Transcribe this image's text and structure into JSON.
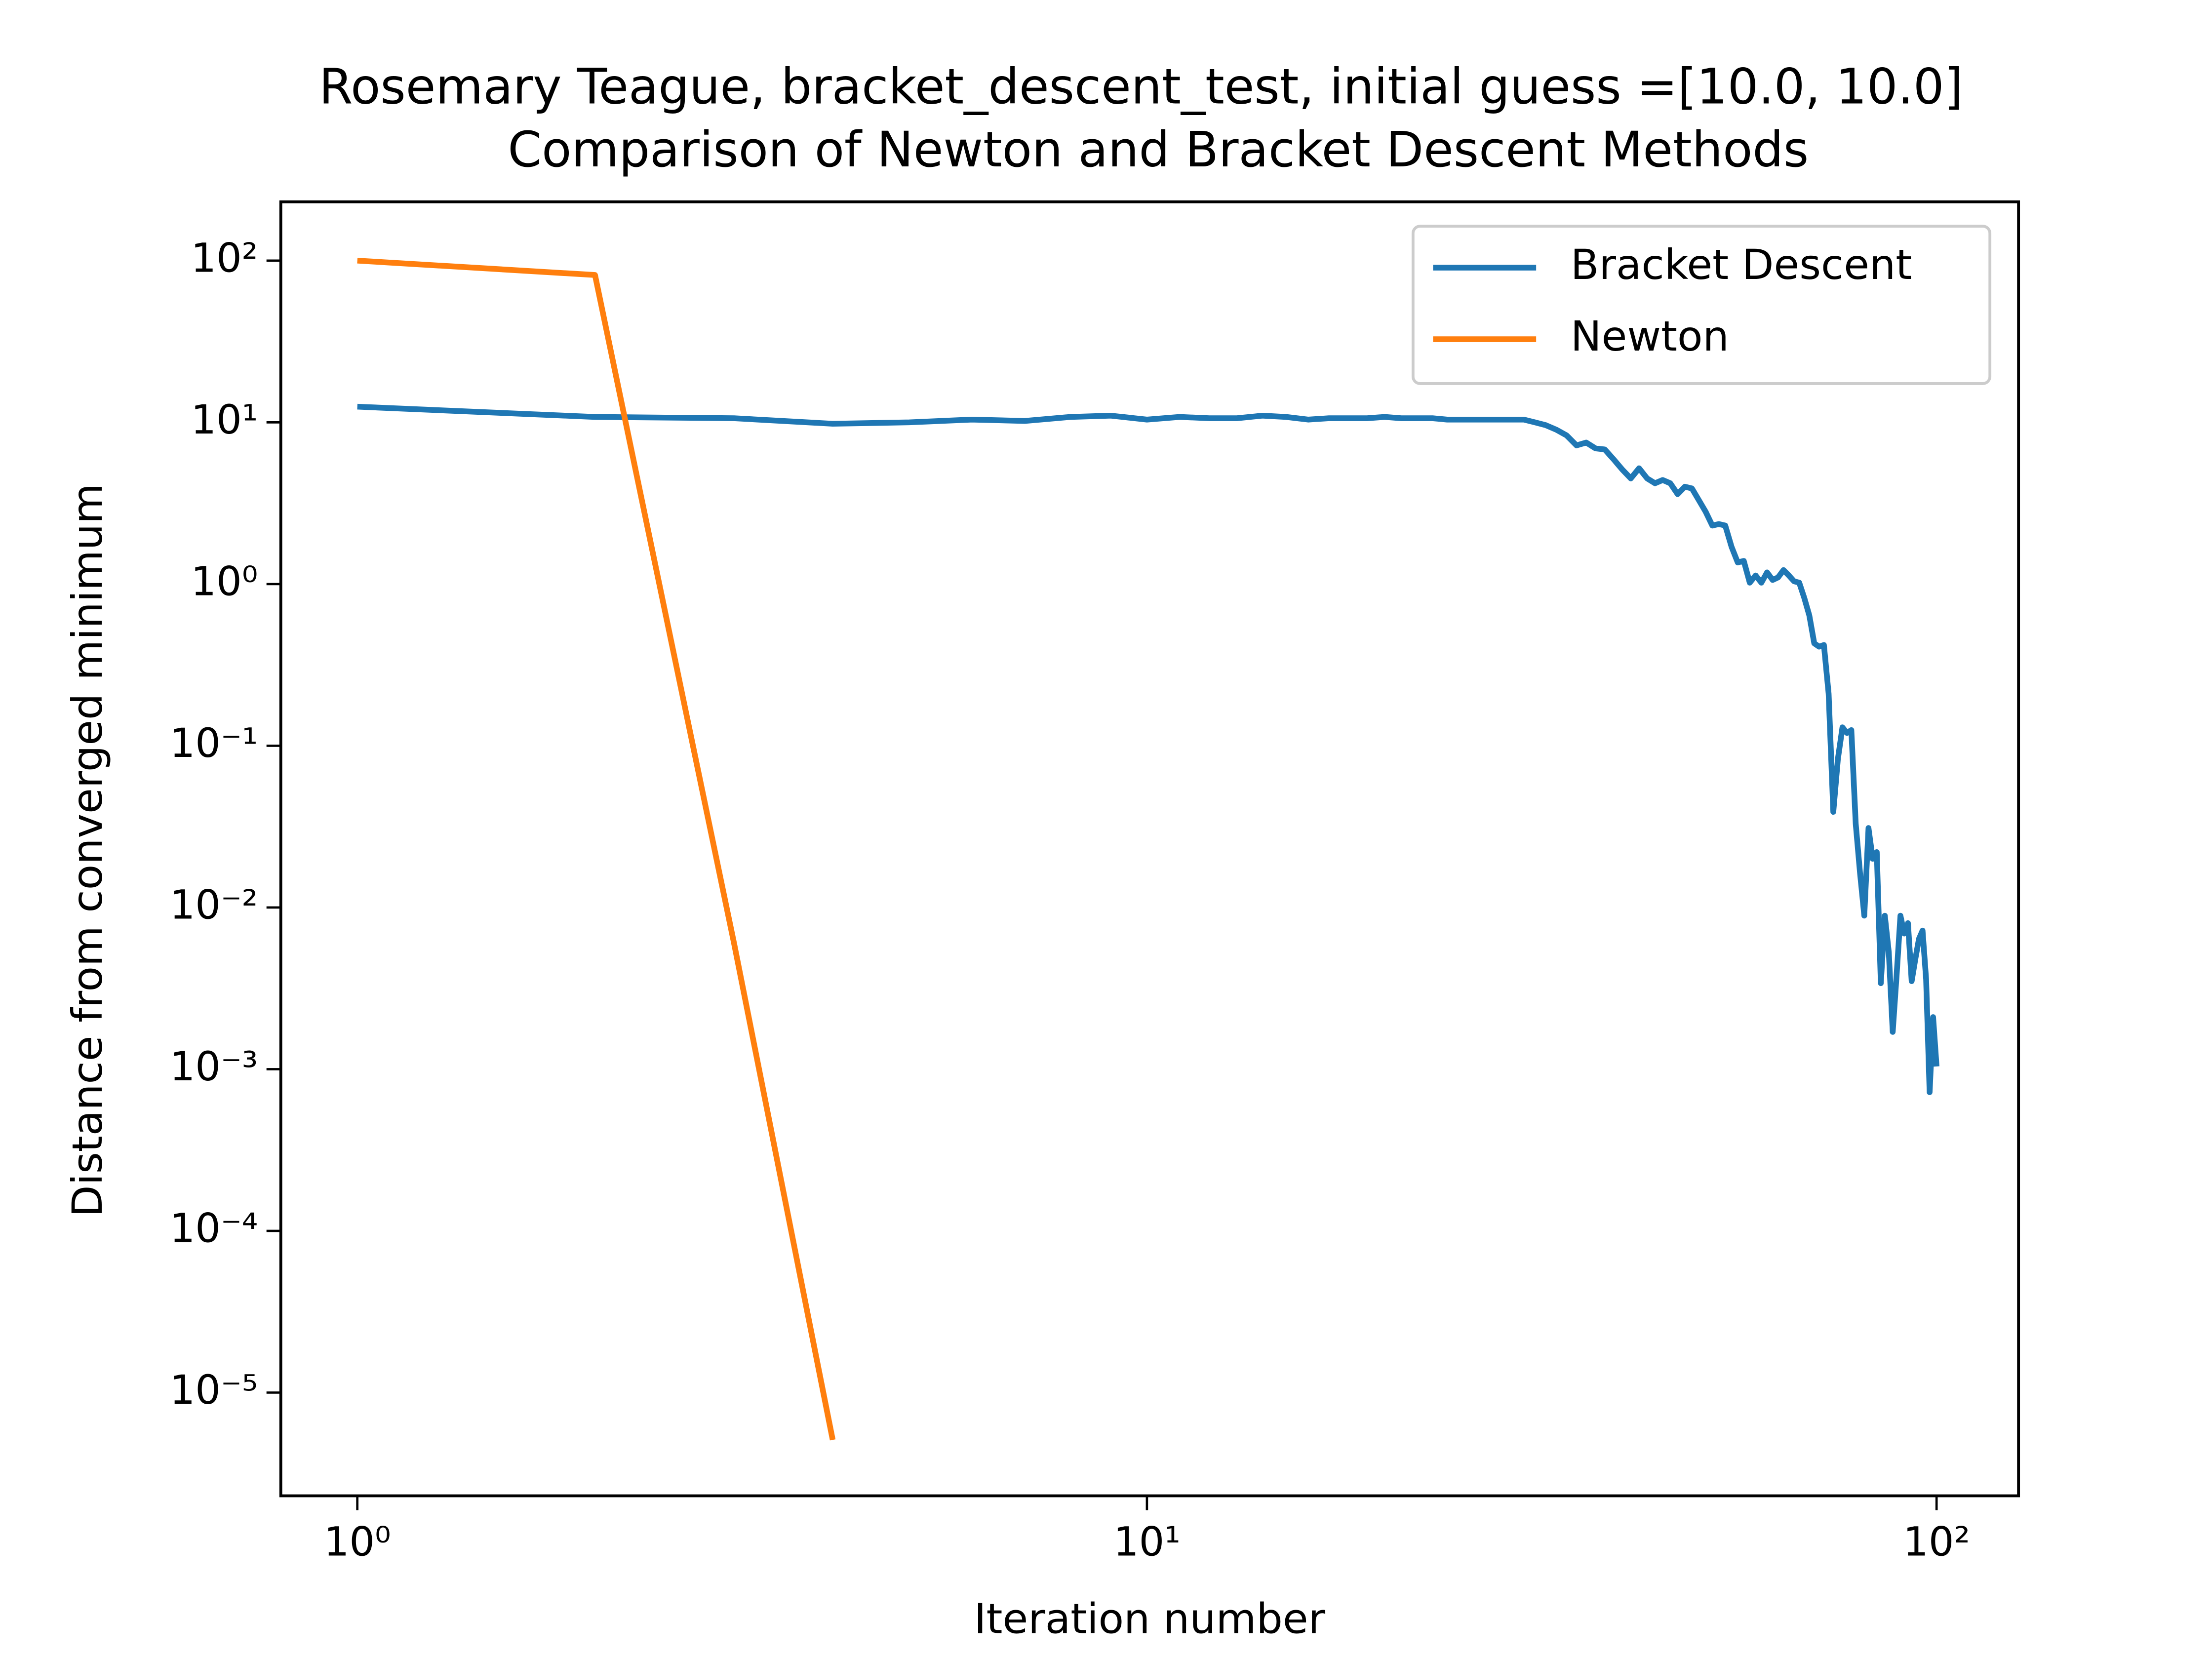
{
  "chart_data": {
    "type": "line",
    "title": "Rosemary Teague, bracket_descent_test, initial guess =[10.0, 10.0]",
    "subtitle": "Comparison of Newton and Bracket Descent Methods",
    "x_label": "Iteration number",
    "y_label": "Distance from converged minimum",
    "xscale": "log",
    "yscale": "log",
    "xlim": [
      0.8,
      127
    ],
    "ylim": [
      2.3e-06,
      231
    ],
    "xticks": [
      {
        "value": 1,
        "label": "10⁰"
      },
      {
        "value": 10,
        "label": "10¹"
      },
      {
        "value": 100,
        "label": "10²"
      }
    ],
    "yticks": [
      {
        "value": 1e-05,
        "label": "10⁻⁵"
      },
      {
        "value": 0.0001,
        "label": "10⁻⁴"
      },
      {
        "value": 0.001,
        "label": "10⁻³"
      },
      {
        "value": 0.01,
        "label": "10⁻²"
      },
      {
        "value": 0.1,
        "label": "10⁻¹"
      },
      {
        "value": 1,
        "label": "10⁰"
      },
      {
        "value": 10,
        "label": "10¹"
      },
      {
        "value": 100,
        "label": "10²"
      }
    ],
    "legend": "upper right",
    "series": [
      {
        "name": "Bracket Descent",
        "color": "#1f77b4",
        "x": [
          1,
          2,
          3,
          4,
          5,
          6,
          7,
          8,
          9,
          10,
          11,
          12,
          13,
          14,
          15,
          16,
          17,
          18,
          19,
          20,
          21,
          22,
          23,
          24,
          25,
          26,
          27,
          28,
          29,
          30,
          31,
          32,
          33,
          34,
          35,
          36,
          37,
          38,
          39,
          40,
          41,
          42,
          43,
          44,
          45,
          46,
          47,
          48,
          49,
          50,
          51,
          52,
          53,
          54,
          55,
          56,
          57,
          58,
          59,
          60,
          61,
          62,
          63,
          64,
          65,
          66,
          67,
          68,
          69,
          70,
          71,
          72,
          73,
          74,
          75,
          76,
          77,
          78,
          79,
          80,
          81,
          82,
          83,
          84,
          85,
          86,
          87,
          88,
          89,
          90,
          91,
          92,
          93,
          94,
          95,
          96,
          97,
          98,
          99,
          100
        ],
        "values": [
          12.5,
          10.8,
          10.6,
          9.8,
          10.0,
          10.4,
          10.2,
          10.8,
          11.0,
          10.4,
          10.8,
          10.6,
          10.6,
          11.0,
          10.8,
          10.4,
          10.6,
          10.6,
          10.6,
          10.8,
          10.6,
          10.6,
          10.6,
          10.4,
          10.4,
          10.4,
          10.4,
          10.4,
          10.4,
          10.4,
          10.0,
          9.6,
          9.0,
          8.3,
          7.2,
          7.5,
          6.9,
          6.8,
          5.9,
          5.1,
          4.5,
          5.2,
          4.5,
          4.2,
          4.4,
          4.2,
          3.6,
          4.0,
          3.9,
          3.3,
          2.8,
          2.3,
          2.35,
          2.3,
          1.7,
          1.36,
          1.39,
          1.02,
          1.13,
          1.02,
          1.18,
          1.06,
          1.1,
          1.22,
          1.13,
          1.04,
          1.02,
          0.82,
          0.64,
          0.43,
          0.41,
          0.42,
          0.21,
          0.039,
          0.083,
          0.13,
          0.12,
          0.125,
          0.033,
          0.0163,
          0.0089,
          0.031,
          0.02,
          0.022,
          0.0034,
          0.0089,
          0.0053,
          0.0017,
          0.0038,
          0.0089,
          0.0069,
          0.008,
          0.0035,
          0.0048,
          0.0064,
          0.0072,
          0.0036,
          0.00072,
          0.0021,
          0.00104
        ]
      },
      {
        "name": "Newton",
        "color": "#ff7f0e",
        "x": [
          1,
          2,
          3,
          4
        ],
        "values": [
          100,
          81.5,
          0.006,
          5.1e-06
        ]
      }
    ]
  }
}
